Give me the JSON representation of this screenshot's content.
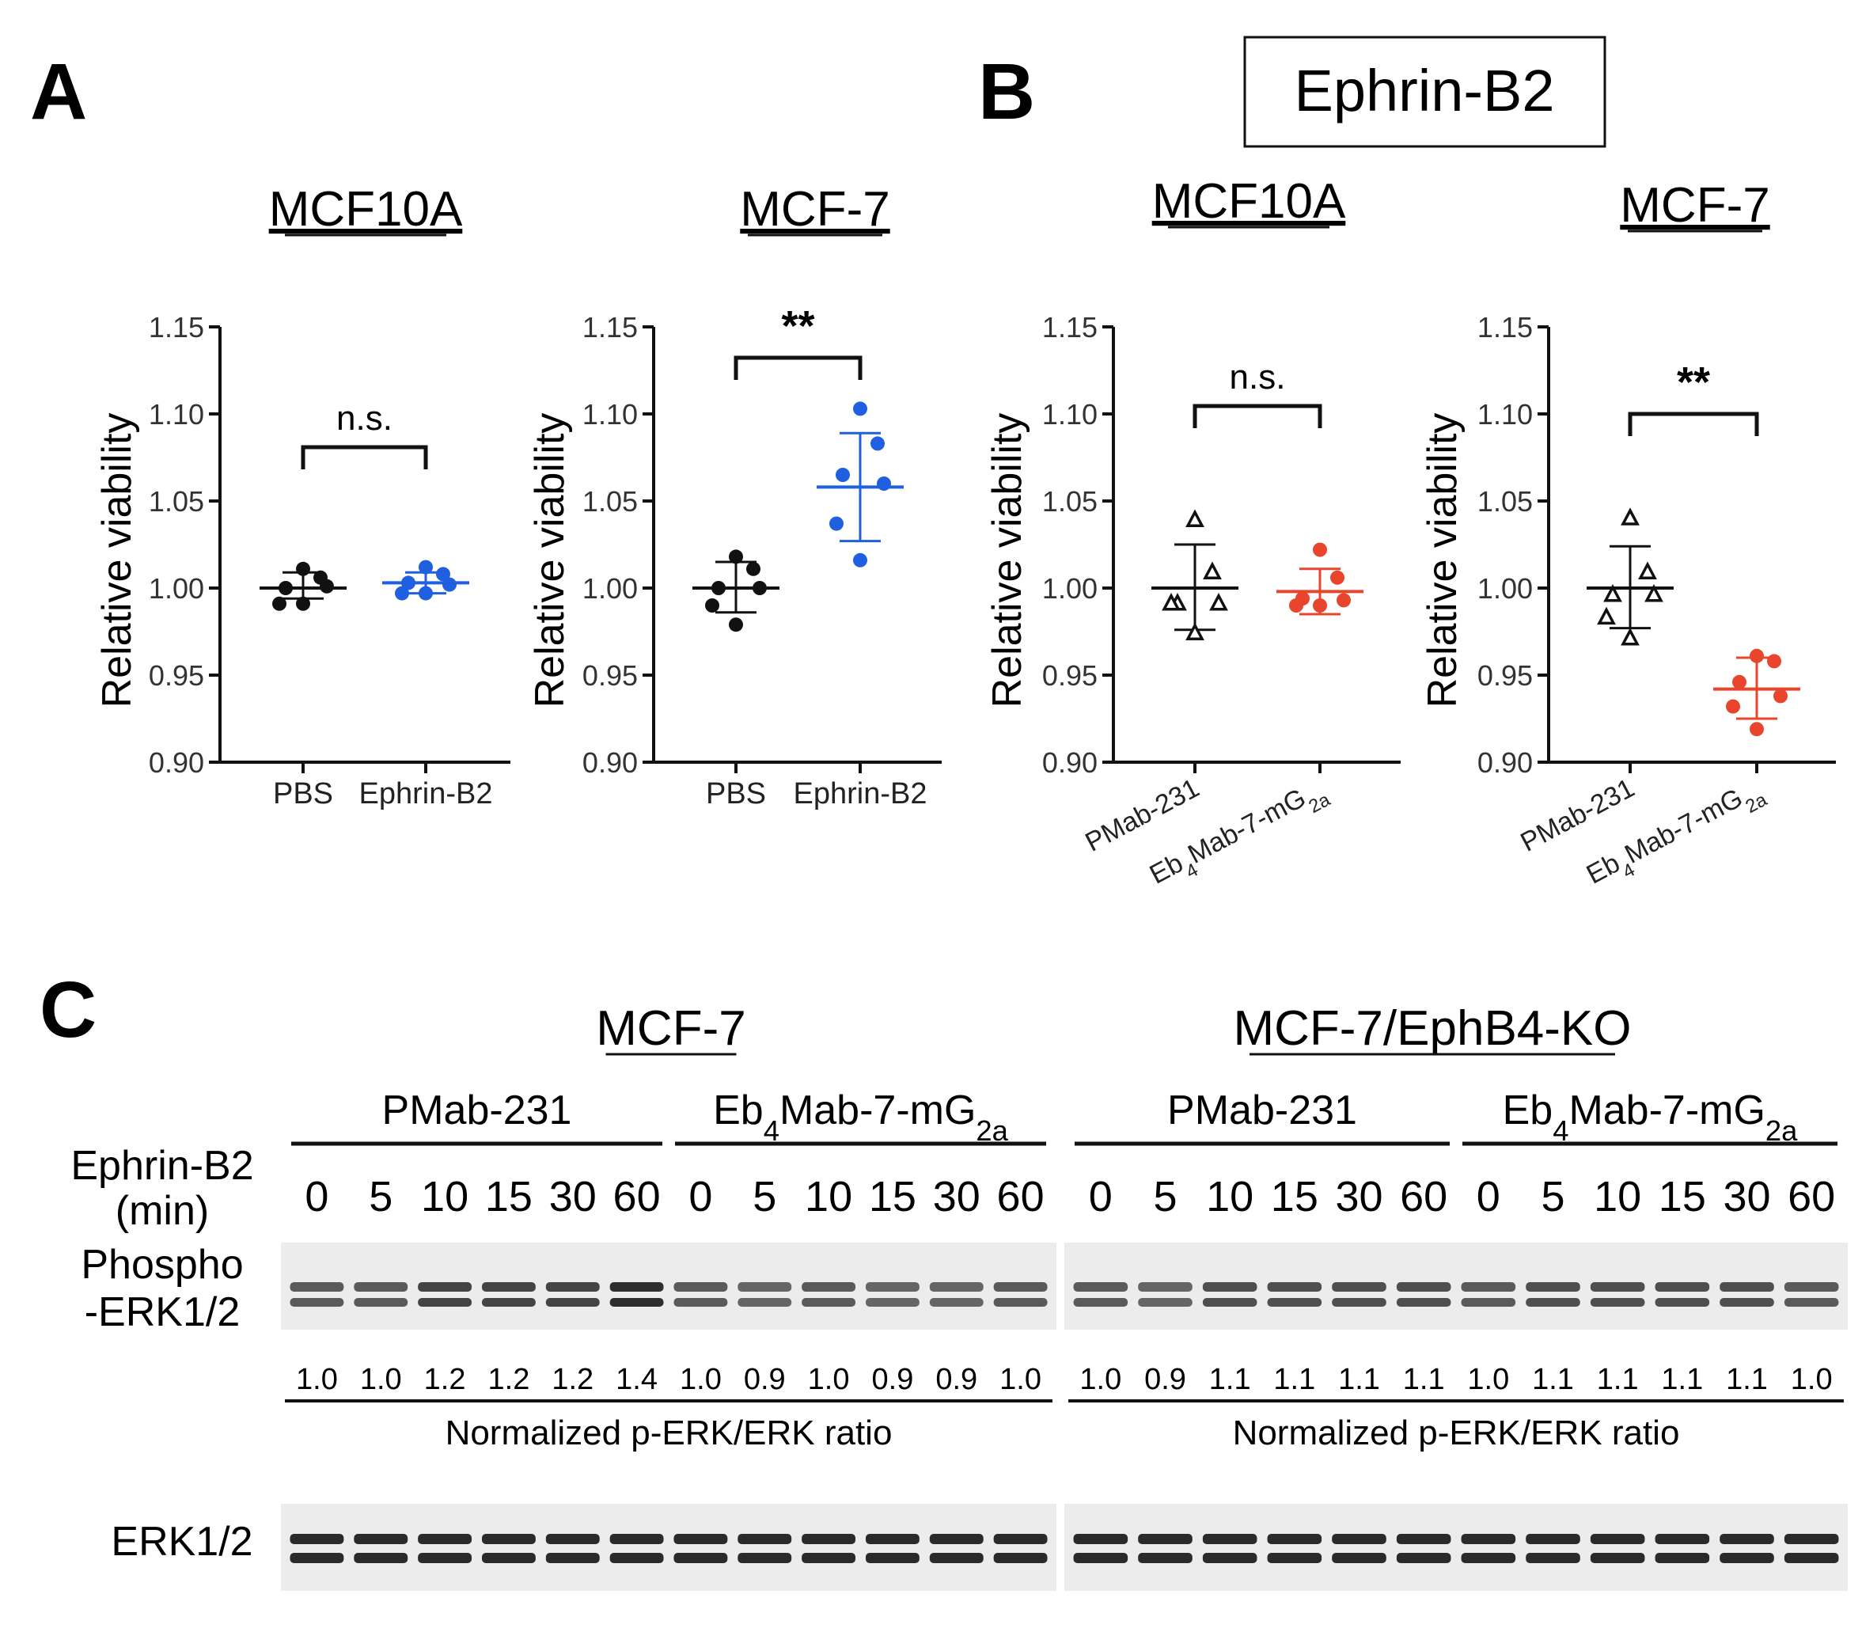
{
  "panels": {
    "a": "A",
    "b": "B",
    "c": "C"
  },
  "boxed_title": "Ephrin-B2",
  "chart_data": [
    {
      "type": "scatter",
      "panel": "A",
      "title": "MCF10A",
      "ylabel": "Relative viability",
      "ylim": [
        0.9,
        1.15
      ],
      "yticks": [
        "0.90",
        "0.95",
        "1.00",
        "1.05",
        "1.10",
        "1.15"
      ],
      "categories": [
        "PBS",
        "Ephrin-B2"
      ],
      "significance": "n.s.",
      "series": [
        {
          "category": "PBS",
          "color": "#111111",
          "marker": "circle",
          "values": [
            1.011,
            1.006,
            1.0,
            1.001,
            0.991,
            0.991
          ],
          "mean": 1.0,
          "sd_low": 0.994,
          "sd_high": 1.009
        },
        {
          "category": "Ephrin-B2",
          "color": "#1f5fe0",
          "marker": "circle",
          "values": [
            1.012,
            1.008,
            1.003,
            1.002,
            0.997,
            0.997
          ],
          "mean": 1.003,
          "sd_low": 0.997,
          "sd_high": 1.009
        }
      ]
    },
    {
      "type": "scatter",
      "panel": "A",
      "title": "MCF-7",
      "ylabel": "Relative viability",
      "ylim": [
        0.9,
        1.15
      ],
      "yticks": [
        "0.90",
        "0.95",
        "1.00",
        "1.05",
        "1.10",
        "1.15"
      ],
      "categories": [
        "PBS",
        "Ephrin-B2"
      ],
      "significance": "**",
      "series": [
        {
          "category": "PBS",
          "color": "#111111",
          "marker": "circle",
          "values": [
            1.018,
            1.011,
            1.0,
            1.0,
            0.99,
            0.979
          ],
          "mean": 1.0,
          "sd_low": 0.986,
          "sd_high": 1.015
        },
        {
          "category": "Ephrin-B2",
          "color": "#1f5fe0",
          "marker": "circle",
          "values": [
            1.103,
            1.083,
            1.065,
            1.06,
            1.037,
            1.016
          ],
          "mean": 1.058,
          "sd_low": 1.027,
          "sd_high": 1.089
        }
      ]
    },
    {
      "type": "scatter",
      "panel": "B",
      "title": "MCF10A",
      "ylabel": "Relative viability",
      "ylim": [
        0.9,
        1.15
      ],
      "yticks": [
        "0.90",
        "0.95",
        "1.00",
        "1.05",
        "1.10",
        "1.15"
      ],
      "categories": [
        "PMab-231",
        "Eb4Mab-7-mG2a"
      ],
      "significance": "n.s.",
      "series": [
        {
          "category": "PMab-231",
          "color": "#111111",
          "marker": "triangle-open",
          "values": [
            1.039,
            1.009,
            0.991,
            0.991,
            0.991,
            0.974
          ],
          "mean": 1.0,
          "sd_low": 0.976,
          "sd_high": 1.025
        },
        {
          "category": "Eb4Mab-7-mG2a",
          "color": "#e8452c",
          "marker": "circle",
          "values": [
            1.022,
            1.006,
            0.994,
            0.993,
            0.99,
            0.99
          ],
          "mean": 0.998,
          "sd_low": 0.985,
          "sd_high": 1.011
        }
      ]
    },
    {
      "type": "scatter",
      "panel": "B",
      "title": "MCF-7",
      "ylabel": "Relative viability",
      "ylim": [
        0.9,
        1.15
      ],
      "yticks": [
        "0.90",
        "0.95",
        "1.00",
        "1.05",
        "1.10",
        "1.15"
      ],
      "categories": [
        "PMab-231",
        "Eb4Mab-7-mG2a"
      ],
      "significance": "**",
      "series": [
        {
          "category": "PMab-231",
          "color": "#111111",
          "marker": "triangle-open",
          "values": [
            1.04,
            1.009,
            0.996,
            0.996,
            0.983,
            0.971
          ],
          "mean": 1.0,
          "sd_low": 0.977,
          "sd_high": 1.024
        },
        {
          "category": "Eb4Mab-7-mG2a",
          "color": "#e8452c",
          "marker": "circle",
          "values": [
            0.961,
            0.958,
            0.946,
            0.938,
            0.932,
            0.919
          ],
          "mean": 0.942,
          "sd_low": 0.925,
          "sd_high": 0.96
        }
      ]
    }
  ],
  "blot": {
    "groups": [
      {
        "title": "MCF-7",
        "subgroups": [
          {
            "label": "PMab-231",
            "times": [
              "0",
              "5",
              "10",
              "15",
              "30",
              "60"
            ],
            "ratios": [
              "1.0",
              "1.0",
              "1.2",
              "1.2",
              "1.2",
              "1.4"
            ]
          },
          {
            "label": "Eb4Mab-7-mG2a",
            "times": [
              "0",
              "5",
              "10",
              "15",
              "30",
              "60"
            ],
            "ratios": [
              "1.0",
              "0.9",
              "1.0",
              "0.9",
              "0.9",
              "1.0"
            ]
          }
        ],
        "ratio_label": "Normalized p-ERK/ERK ratio"
      },
      {
        "title": "MCF-7/EphB4-KO",
        "subgroups": [
          {
            "label": "PMab-231",
            "times": [
              "0",
              "5",
              "10",
              "15",
              "30",
              "60"
            ],
            "ratios": [
              "1.0",
              "0.9",
              "1.1",
              "1.1",
              "1.1",
              "1.1"
            ]
          },
          {
            "label": "Eb4Mab-7-mG2a",
            "times": [
              "0",
              "5",
              "10",
              "15",
              "30",
              "60"
            ],
            "ratios": [
              "1.0",
              "1.1",
              "1.1",
              "1.1",
              "1.1",
              "1.0"
            ]
          }
        ],
        "ratio_label": "Normalized p-ERK/ERK ratio"
      }
    ],
    "treatment_label_line1": "Ephrin-B2",
    "treatment_label_line2": "(min)",
    "phospho_label_line1": "Phospho",
    "phospho_label_line2": "-ERK1/2",
    "erk_label": "ERK1/2"
  }
}
